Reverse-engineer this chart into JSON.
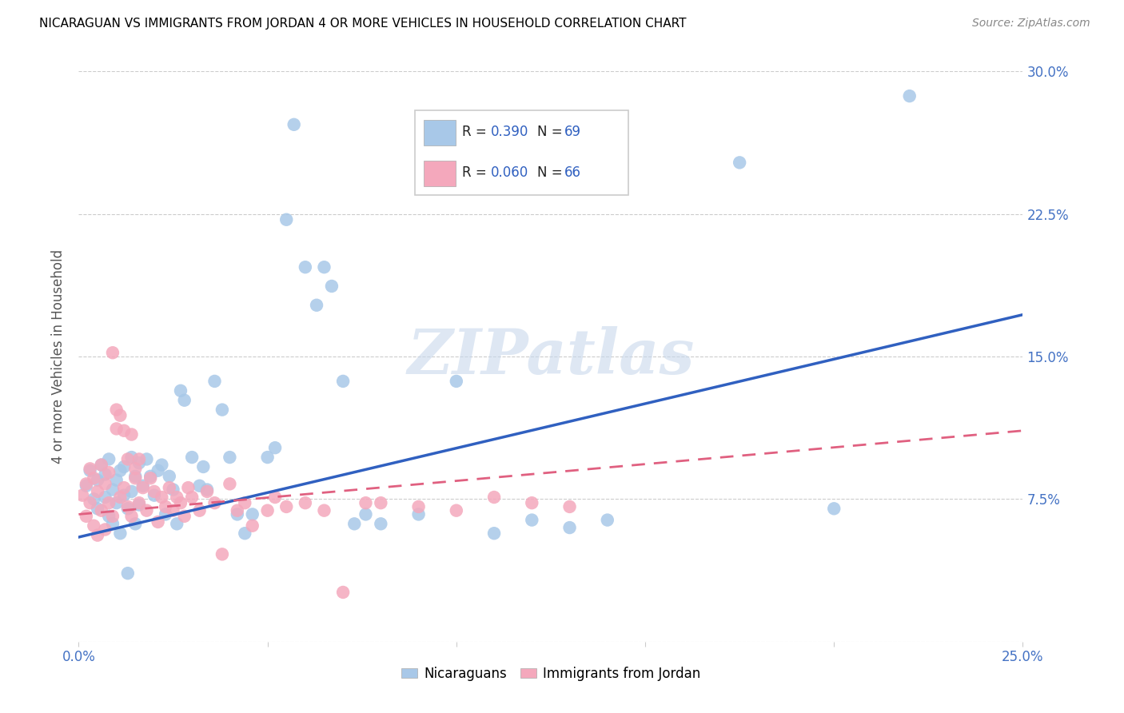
{
  "title": "NICARAGUAN VS IMMIGRANTS FROM JORDAN 4 OR MORE VEHICLES IN HOUSEHOLD CORRELATION CHART",
  "source": "Source: ZipAtlas.com",
  "ylabel": "4 or more Vehicles in Household",
  "x_min": 0.0,
  "x_max": 0.25,
  "y_min": 0.0,
  "y_max": 0.3,
  "x_ticks": [
    0.0,
    0.05,
    0.1,
    0.15,
    0.2,
    0.25
  ],
  "x_tick_labels": [
    "0.0%",
    "",
    "",
    "",
    "",
    "25.0%"
  ],
  "y_ticks": [
    0.0,
    0.075,
    0.15,
    0.225,
    0.3
  ],
  "y_tick_labels_right": [
    "",
    "7.5%",
    "15.0%",
    "22.5%",
    "30.0%"
  ],
  "legend_r1": "R = ",
  "legend_v1": "0.390",
  "legend_n1_label": "N = ",
  "legend_n1": "69",
  "legend_r2": "R = ",
  "legend_v2": "0.060",
  "legend_n2_label": "N = ",
  "legend_n2": "66",
  "blue_color": "#a8c8e8",
  "pink_color": "#f4a8bc",
  "blue_line_color": "#3060c0",
  "pink_line_color": "#e06080",
  "text_color_dark": "#222222",
  "text_color_blue": "#3060c0",
  "watermark": "ZIPatlas",
  "title_fontsize": 11,
  "tick_color": "#4472c4",
  "grid_color": "#cccccc",
  "blue_scatter": [
    [
      0.002,
      0.082
    ],
    [
      0.003,
      0.09
    ],
    [
      0.004,
      0.075
    ],
    [
      0.005,
      0.085
    ],
    [
      0.005,
      0.07
    ],
    [
      0.006,
      0.093
    ],
    [
      0.007,
      0.088
    ],
    [
      0.007,
      0.076
    ],
    [
      0.008,
      0.096
    ],
    [
      0.008,
      0.066
    ],
    [
      0.009,
      0.08
    ],
    [
      0.009,
      0.062
    ],
    [
      0.01,
      0.085
    ],
    [
      0.01,
      0.073
    ],
    [
      0.011,
      0.09
    ],
    [
      0.011,
      0.057
    ],
    [
      0.012,
      0.092
    ],
    [
      0.012,
      0.077
    ],
    [
      0.013,
      0.07
    ],
    [
      0.013,
      0.036
    ],
    [
      0.014,
      0.097
    ],
    [
      0.014,
      0.079
    ],
    [
      0.015,
      0.087
    ],
    [
      0.015,
      0.062
    ],
    [
      0.016,
      0.094
    ],
    [
      0.016,
      0.072
    ],
    [
      0.017,
      0.082
    ],
    [
      0.018,
      0.096
    ],
    [
      0.019,
      0.087
    ],
    [
      0.02,
      0.077
    ],
    [
      0.021,
      0.09
    ],
    [
      0.022,
      0.093
    ],
    [
      0.023,
      0.067
    ],
    [
      0.024,
      0.087
    ],
    [
      0.025,
      0.08
    ],
    [
      0.026,
      0.062
    ],
    [
      0.027,
      0.132
    ],
    [
      0.028,
      0.127
    ],
    [
      0.03,
      0.097
    ],
    [
      0.032,
      0.082
    ],
    [
      0.033,
      0.092
    ],
    [
      0.034,
      0.08
    ],
    [
      0.036,
      0.137
    ],
    [
      0.038,
      0.122
    ],
    [
      0.04,
      0.097
    ],
    [
      0.042,
      0.067
    ],
    [
      0.044,
      0.057
    ],
    [
      0.046,
      0.067
    ],
    [
      0.05,
      0.097
    ],
    [
      0.052,
      0.102
    ],
    [
      0.055,
      0.222
    ],
    [
      0.057,
      0.272
    ],
    [
      0.06,
      0.197
    ],
    [
      0.063,
      0.177
    ],
    [
      0.065,
      0.197
    ],
    [
      0.067,
      0.187
    ],
    [
      0.07,
      0.137
    ],
    [
      0.073,
      0.062
    ],
    [
      0.076,
      0.067
    ],
    [
      0.08,
      0.062
    ],
    [
      0.09,
      0.067
    ],
    [
      0.1,
      0.137
    ],
    [
      0.11,
      0.057
    ],
    [
      0.12,
      0.064
    ],
    [
      0.13,
      0.06
    ],
    [
      0.14,
      0.064
    ],
    [
      0.175,
      0.252
    ],
    [
      0.2,
      0.07
    ],
    [
      0.22,
      0.287
    ]
  ],
  "pink_scatter": [
    [
      0.001,
      0.077
    ],
    [
      0.002,
      0.083
    ],
    [
      0.002,
      0.066
    ],
    [
      0.003,
      0.091
    ],
    [
      0.003,
      0.073
    ],
    [
      0.004,
      0.086
    ],
    [
      0.004,
      0.061
    ],
    [
      0.005,
      0.079
    ],
    [
      0.005,
      0.056
    ],
    [
      0.006,
      0.093
    ],
    [
      0.006,
      0.069
    ],
    [
      0.007,
      0.083
    ],
    [
      0.007,
      0.059
    ],
    [
      0.008,
      0.089
    ],
    [
      0.008,
      0.073
    ],
    [
      0.009,
      0.066
    ],
    [
      0.009,
      0.152
    ],
    [
      0.01,
      0.122
    ],
    [
      0.01,
      0.112
    ],
    [
      0.011,
      0.119
    ],
    [
      0.011,
      0.076
    ],
    [
      0.012,
      0.111
    ],
    [
      0.012,
      0.081
    ],
    [
      0.013,
      0.096
    ],
    [
      0.013,
      0.071
    ],
    [
      0.014,
      0.109
    ],
    [
      0.014,
      0.066
    ],
    [
      0.015,
      0.091
    ],
    [
      0.015,
      0.086
    ],
    [
      0.016,
      0.096
    ],
    [
      0.016,
      0.073
    ],
    [
      0.017,
      0.081
    ],
    [
      0.018,
      0.069
    ],
    [
      0.019,
      0.086
    ],
    [
      0.02,
      0.079
    ],
    [
      0.021,
      0.063
    ],
    [
      0.022,
      0.076
    ],
    [
      0.023,
      0.071
    ],
    [
      0.024,
      0.081
    ],
    [
      0.025,
      0.069
    ],
    [
      0.026,
      0.076
    ],
    [
      0.027,
      0.073
    ],
    [
      0.028,
      0.066
    ],
    [
      0.029,
      0.081
    ],
    [
      0.03,
      0.076
    ],
    [
      0.032,
      0.069
    ],
    [
      0.034,
      0.079
    ],
    [
      0.036,
      0.073
    ],
    [
      0.038,
      0.046
    ],
    [
      0.04,
      0.083
    ],
    [
      0.042,
      0.069
    ],
    [
      0.044,
      0.073
    ],
    [
      0.046,
      0.061
    ],
    [
      0.05,
      0.069
    ],
    [
      0.052,
      0.076
    ],
    [
      0.055,
      0.071
    ],
    [
      0.06,
      0.073
    ],
    [
      0.065,
      0.069
    ],
    [
      0.07,
      0.026
    ],
    [
      0.076,
      0.073
    ],
    [
      0.08,
      0.073
    ],
    [
      0.09,
      0.071
    ],
    [
      0.1,
      0.069
    ],
    [
      0.11,
      0.076
    ],
    [
      0.12,
      0.073
    ],
    [
      0.13,
      0.071
    ]
  ],
  "blue_trendline": [
    [
      0.0,
      0.055
    ],
    [
      0.25,
      0.172
    ]
  ],
  "pink_trendline": [
    [
      0.0,
      0.067
    ],
    [
      0.25,
      0.111
    ]
  ]
}
